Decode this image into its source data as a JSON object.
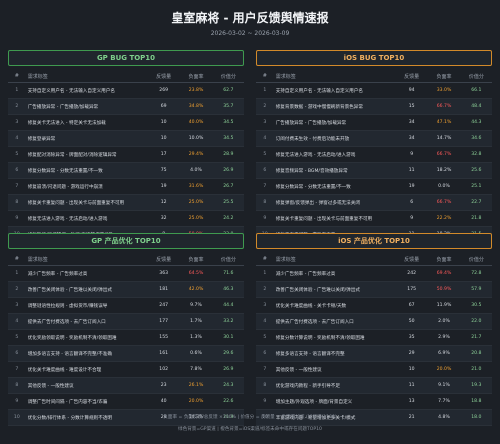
{
  "header": {
    "title": "皇室麻将 - 用户反馈舆情速报",
    "date": "2026-03-02 ~ 2026-03-09"
  },
  "columns": [
    "#",
    "需求标签",
    "反馈量",
    "负面率",
    "价值分"
  ],
  "panels": [
    {
      "title": "GP  BUG TOP10",
      "rows": [
        [
          "1",
          "支持自定义用户名 - 无法输入自定义用户名",
          "269",
          "23.8%",
          "62.7"
        ],
        [
          "2",
          "广告播放异常 - 广告播放/加载异常",
          "69",
          "34.8%",
          "35.7"
        ],
        [
          "3",
          "修复关卡无法进入 - 特定关卡无法加载",
          "10",
          "40.0%",
          "34.5"
        ],
        [
          "4",
          "修复登录异常",
          "10",
          "10.0%",
          "34.5"
        ],
        [
          "5",
          "修复配对消除异常 - 牌面配对/消除逻辑异常",
          "17",
          "29.4%",
          "28.9"
        ],
        [
          "6",
          "修复分数异常 - 分数无法重置/不一致",
          "75",
          "4.0%",
          "26.9"
        ],
        [
          "7",
          "修复崩溃/闪退问题 - 游戏运行中崩溃",
          "19",
          "31.6%",
          "26.7"
        ],
        [
          "8",
          "修复关卡重复问题 - 出现关卡与前面重复不可用",
          "12",
          "25.0%",
          "25.5"
        ],
        [
          "9",
          "修复无法进入游戏 - 无法启动/进入游戏",
          "32",
          "25.0%",
          "24.2"
        ],
        [
          "10",
          "修复暂停/拖拽操作 - 触控/拖拽操作不灵敏",
          "8",
          "50.0%",
          "23.0"
        ]
      ]
    },
    {
      "title": "iOS  BUG TOP10",
      "rows": [
        [
          "1",
          "支持自定义用户名 - 无法输入自定义用户名",
          "94",
          "33.0%",
          "66.1"
        ],
        [
          "2",
          "修复背景数据 - 游戏中慢慢刷新背景色异常",
          "15",
          "66.7%",
          "48.4"
        ],
        [
          "3",
          "广告播放异常 - 广告播放/加载异常",
          "34",
          "47.1%",
          "44.3"
        ],
        [
          "4",
          "订阅付费未生效 - 付费后功能未开放",
          "34",
          "14.7%",
          "34.6"
        ],
        [
          "5",
          "修复无法进入游戏 - 无法启动/进入游戏",
          "9",
          "66.7%",
          "32.8"
        ],
        [
          "6",
          "修复音频异常 - BGM/音效播放异常",
          "11",
          "18.2%",
          "25.6"
        ],
        [
          "7",
          "修复分数异常 - 分数无法重置/不一致",
          "19",
          "0.0%",
          "25.1"
        ],
        [
          "8",
          "修复弹窗/反馈弹出 - 弹窗过多或无法关闭",
          "6",
          "66.7%",
          "22.7"
        ],
        [
          "9",
          "修复关卡重复问题 - 出现关卡与前面重复不可用",
          "9",
          "22.2%",
          "21.8"
        ],
        [
          "10",
          "修复无声音问题 - 游戏无声音",
          "11",
          "18.2%",
          "21.5"
        ]
      ]
    },
    {
      "title": "GP  产品优化 TOP10",
      "rows": [
        [
          "1",
          "减少广告频率 - 广告频率过高",
          "363",
          "64.5%",
          "71.6"
        ],
        [
          "2",
          "改善广告关闭体验 - 广告难以关闭/弹出式",
          "181",
          "42.0%",
          "46.3"
        ],
        [
          "3",
          "调整谜语性拉规则 - 虚拟货币/赚钱误导",
          "247",
          "9.7%",
          "44.4"
        ],
        [
          "4",
          "提供去广告付费选项 - 去广告订阅入口",
          "177",
          "1.7%",
          "33.2"
        ],
        [
          "5",
          "优化奖励领取说明 - 奖励机制不清/领取困难",
          "155",
          "1.3%",
          "30.1"
        ],
        [
          "6",
          "增加多语言支持 - 语言翻译不完整/不准确",
          "161",
          "0.6%",
          "29.6"
        ],
        [
          "7",
          "优化关卡难度曲线 - 难度设计不合理",
          "102",
          "7.8%",
          "26.9"
        ],
        [
          "8",
          "其他反馈 - 一般性建议",
          "23",
          "26.1%",
          "24.3"
        ],
        [
          "9",
          "调整广告时间间隔 - 广告内容不当/诈骗",
          "40",
          "20.0%",
          "22.6"
        ],
        [
          "10",
          "优化分数/排行体系 - 分数计算规则不透明",
          "28",
          "14.3%",
          "21.9"
        ]
      ]
    },
    {
      "title": "iOS  产品优化 TOP10",
      "rows": [
        [
          "1",
          "减少广告频率 - 广告频率过高",
          "242",
          "69.4%",
          "72.8"
        ],
        [
          "2",
          "改善广告关闭体验 - 广告难以关闭/弹出式",
          "175",
          "50.9%",
          "57.9"
        ],
        [
          "3",
          "优化关卡难度曲线 - 关卡卡顿/天数",
          "67",
          "11.9%",
          "30.5"
        ],
        [
          "4",
          "提供去广告付费选项 - 去广告订阅入口",
          "50",
          "2.0%",
          "22.0"
        ],
        [
          "5",
          "修复分数计算说明 - 奖励机制不清/领取困难",
          "35",
          "2.9%",
          "21.7"
        ],
        [
          "6",
          "修复多语言支持 - 语言翻译不完整",
          "29",
          "6.9%",
          "20.8"
        ],
        [
          "7",
          "其他反馈 - 一般性建议",
          "10",
          "20.0%",
          "21.0"
        ],
        [
          "8",
          "优化游戏内教程 - 新手引导不足",
          "11",
          "9.1%",
          "19.3"
        ],
        [
          "9",
          "增加主题/外观选项 - 牌面/背景自定义",
          "13",
          "7.7%",
          "18.8"
        ],
        [
          "10",
          "丰富游戏内容 - 希望增加更多关卡/模式",
          "21",
          "4.8%",
          "18.0"
        ]
      ]
    }
  ],
  "footer": [
    "负面率 = 负面反馈/总反馈 ×100%  |  价值分 = 反馈量 × 负面率加权 (加权满分100)",
    "绿色背景=GP渠道  |  橙色背景=iOS渠道/标签未命中或存在问题TOP10"
  ]
}
